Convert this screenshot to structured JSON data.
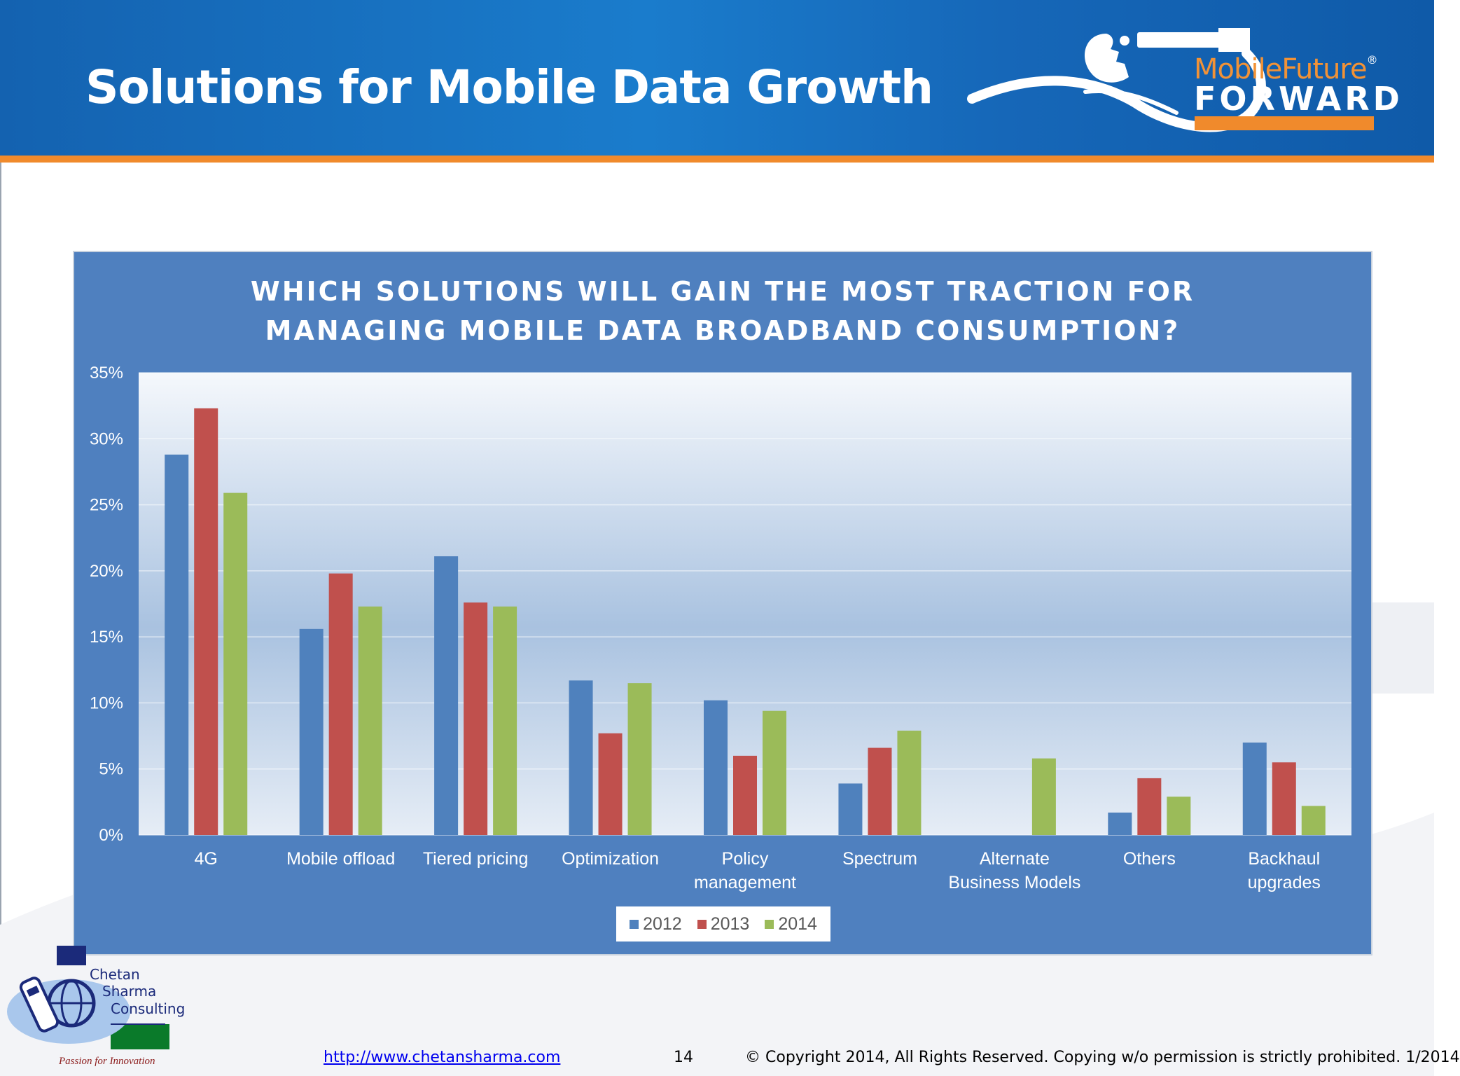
{
  "slide": {
    "title": "Solutions for Mobile Data Growth",
    "page_number": "14",
    "footer_link": "http://www.chetansharma.com",
    "copyright": "© Copyright 2014, All Rights Reserved. Copying w/o permission is strictly prohibited. 1/2014"
  },
  "logo": {
    "text_top": "MobileFuture",
    "registered": "®",
    "text_bottom": "FORWARD",
    "colors": {
      "accent": "#f08a2c",
      "text": "#ffffff"
    }
  },
  "company_logo": {
    "name_line1": "Chetan",
    "name_line2": "Sharma",
    "name_line3": "Consulting",
    "tagline": "Passion for Innovation"
  },
  "chart_data": {
    "type": "bar",
    "title_line1": "WHICH SOLUTIONS WILL GAIN THE MOST TRACTION FOR",
    "title_line2": "MANAGING MOBILE DATA BROADBAND CONSUMPTION?",
    "categories": [
      [
        "4G"
      ],
      [
        "Mobile offload"
      ],
      [
        "Tiered pricing"
      ],
      [
        "Optimization"
      ],
      [
        "Policy",
        "management"
      ],
      [
        "Spectrum"
      ],
      [
        "Alternate",
        "Business Models"
      ],
      [
        "Others"
      ],
      [
        "Backhaul",
        "upgrades"
      ]
    ],
    "series": [
      {
        "name": "2012",
        "color": "#4f81bd",
        "values": [
          28.8,
          15.6,
          21.1,
          11.7,
          10.2,
          3.9,
          0,
          1.7,
          7.0
        ]
      },
      {
        "name": "2013",
        "color": "#c0504d",
        "values": [
          32.3,
          19.8,
          17.6,
          7.7,
          6.0,
          6.6,
          0,
          4.3,
          5.5
        ]
      },
      {
        "name": "2014",
        "color": "#9bbb59",
        "values": [
          25.9,
          17.3,
          17.3,
          11.5,
          9.4,
          7.9,
          5.8,
          2.9,
          2.2
        ]
      }
    ],
    "ylim": [
      0,
      35
    ],
    "yticks": [
      0,
      5,
      10,
      15,
      20,
      25,
      30,
      35
    ],
    "ytick_labels": [
      "0%",
      "5%",
      "10%",
      "15%",
      "20%",
      "25%",
      "30%",
      "35%"
    ],
    "grid": true,
    "legend_position": "bottom"
  }
}
